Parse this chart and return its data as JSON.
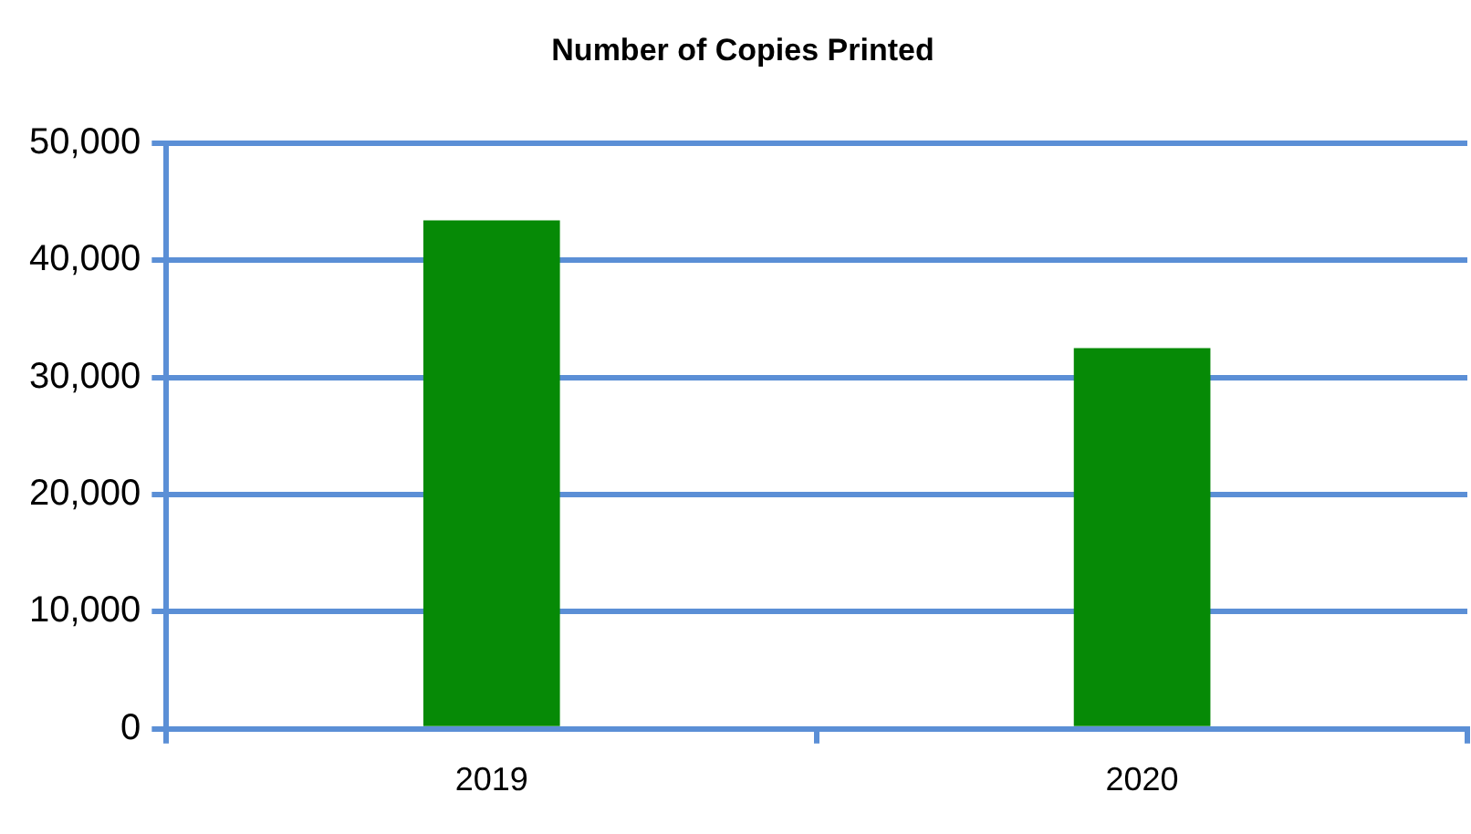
{
  "chart_data": {
    "type": "bar",
    "title": "Number of Copies Printed",
    "categories": [
      "2019",
      "2020"
    ],
    "values": [
      43400,
      32500
    ],
    "color": "#068a06",
    "ylim": [
      0,
      50000
    ],
    "yticks": [
      {
        "value": 0,
        "label": "0"
      },
      {
        "value": 10000,
        "label": "10,000"
      },
      {
        "value": 20000,
        "label": "20,000"
      },
      {
        "value": 30000,
        "label": "30,000"
      },
      {
        "value": 40000,
        "label": "40,000"
      },
      {
        "value": 50000,
        "label": "50,000"
      }
    ],
    "grid": "y",
    "legend": false
  }
}
